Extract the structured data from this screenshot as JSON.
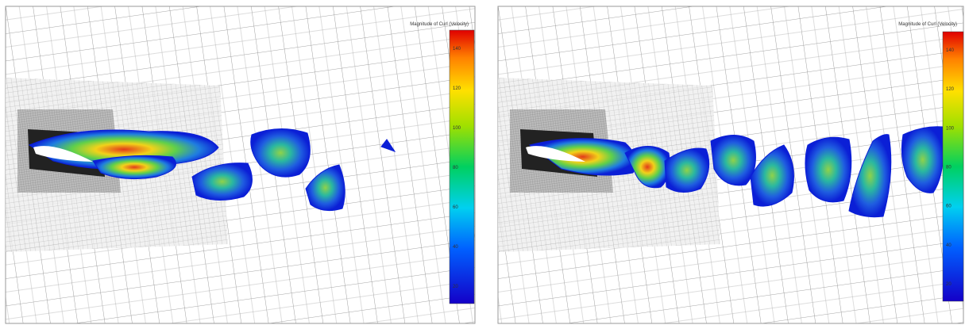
{
  "panels": [
    {
      "legend_title": "Magnitude of Curl (Velocity)",
      "colorbar_ticks": [
        140,
        120,
        100,
        80,
        60,
        40,
        20
      ]
    },
    {
      "legend_title": "Magnitude of Curl (Velocity)",
      "colorbar_ticks": [
        140,
        120,
        100,
        80,
        60,
        40,
        20
      ]
    }
  ]
}
